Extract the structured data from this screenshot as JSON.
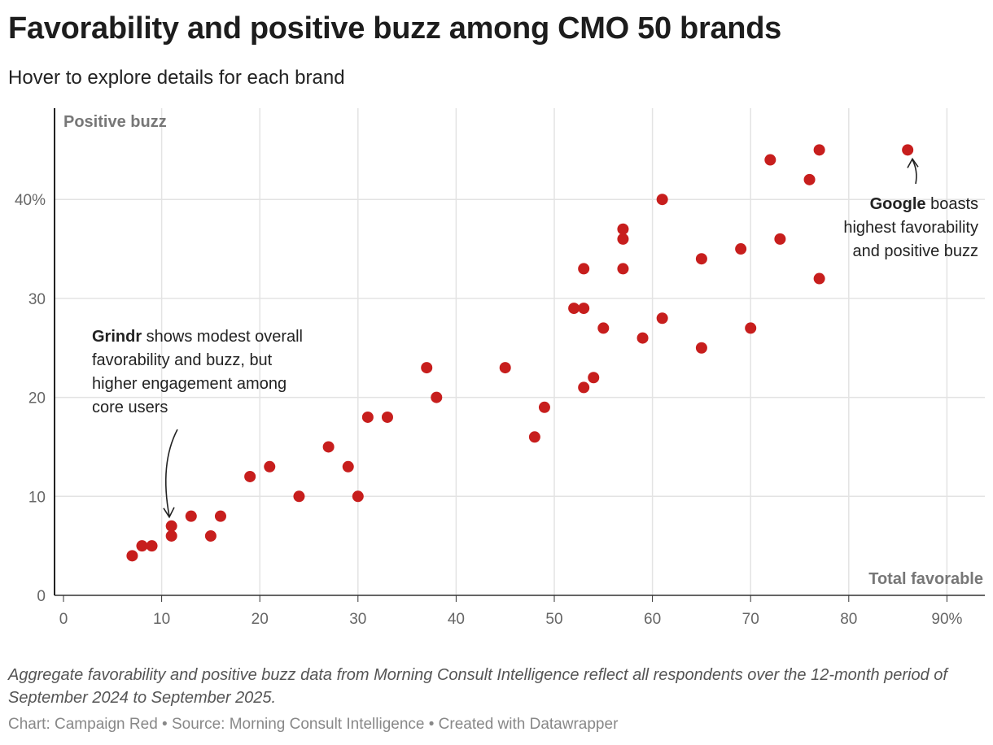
{
  "header": {
    "title": "Favorability and positive buzz among CMO 50 brands",
    "subtitle": "Hover to explore details for each brand"
  },
  "footer": {
    "notes": "Aggregate favorability and positive buzz data from Morning Consult Intelligence reflect all respondents over the 12-month period of September 2024 to September 2025.",
    "byline": "Chart: Campaign Red • Source: Morning Consult Intelligence • Created with Datawrapper"
  },
  "chart_data": {
    "type": "scatter",
    "xlabel": "Total favorable",
    "ylabel": "Positive buzz",
    "xlim": [
      0,
      92
    ],
    "ylim": [
      0,
      48
    ],
    "x_ticks": [
      "0",
      "10",
      "20",
      "30",
      "40",
      "50",
      "60",
      "70",
      "80",
      "90%"
    ],
    "y_ticks": [
      "0",
      "10",
      "20",
      "30",
      "40%"
    ],
    "grid": true,
    "point_color": "#c71e1d",
    "points": [
      {
        "x": 7,
        "y": 4
      },
      {
        "x": 8,
        "y": 5
      },
      {
        "x": 9,
        "y": 5
      },
      {
        "x": 11,
        "y": 7
      },
      {
        "x": 11,
        "y": 6
      },
      {
        "x": 13,
        "y": 8
      },
      {
        "x": 15,
        "y": 6
      },
      {
        "x": 16,
        "y": 8
      },
      {
        "x": 19,
        "y": 12
      },
      {
        "x": 21,
        "y": 13
      },
      {
        "x": 24,
        "y": 10
      },
      {
        "x": 27,
        "y": 15
      },
      {
        "x": 29,
        "y": 13
      },
      {
        "x": 30,
        "y": 10
      },
      {
        "x": 31,
        "y": 18
      },
      {
        "x": 33,
        "y": 18
      },
      {
        "x": 37,
        "y": 23
      },
      {
        "x": 38,
        "y": 20
      },
      {
        "x": 45,
        "y": 23
      },
      {
        "x": 48,
        "y": 16
      },
      {
        "x": 49,
        "y": 19
      },
      {
        "x": 52,
        "y": 29
      },
      {
        "x": 53,
        "y": 29
      },
      {
        "x": 53,
        "y": 33
      },
      {
        "x": 53,
        "y": 21
      },
      {
        "x": 54,
        "y": 22
      },
      {
        "x": 55,
        "y": 27
      },
      {
        "x": 57,
        "y": 37
      },
      {
        "x": 57,
        "y": 36
      },
      {
        "x": 57,
        "y": 33
      },
      {
        "x": 59,
        "y": 26
      },
      {
        "x": 61,
        "y": 40
      },
      {
        "x": 61,
        "y": 28
      },
      {
        "x": 65,
        "y": 34
      },
      {
        "x": 65,
        "y": 25
      },
      {
        "x": 69,
        "y": 35
      },
      {
        "x": 70,
        "y": 27
      },
      {
        "x": 72,
        "y": 44
      },
      {
        "x": 73,
        "y": 36
      },
      {
        "x": 76,
        "y": 42
      },
      {
        "x": 77,
        "y": 45
      },
      {
        "x": 77,
        "y": 32
      },
      {
        "x": 86,
        "y": 45
      }
    ],
    "annotations": [
      {
        "bold": "Google",
        "lines": [
          " boasts",
          "highest favorability",
          "and positive buzz"
        ],
        "target": {
          "x": 86,
          "y": 45
        }
      },
      {
        "bold": "Grindr",
        "lines": [
          " shows modest overall",
          "favorability and buzz, but",
          "higher engagement among",
          "core users"
        ],
        "target": {
          "x": 11,
          "y": 7
        }
      }
    ]
  }
}
